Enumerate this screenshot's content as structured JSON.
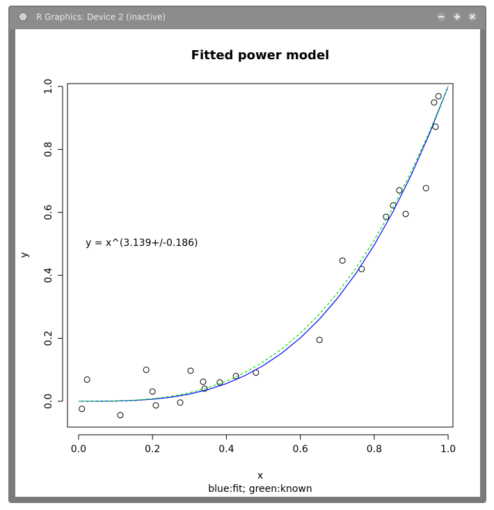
{
  "window_title": "R Graphics: Device 2 (inactive)",
  "chart_data": {
    "type": "scatter",
    "title": "Fitted power model",
    "x_label": "x",
    "y_label": "y",
    "subtitle": "blue:fit; green:known",
    "annotation": "y = x^(3.139+/-0.186)",
    "xlim": [
      -0.03,
      1.013
    ],
    "ylim": [
      -0.082,
      1.009
    ],
    "xticks": [
      {
        "value": 0,
        "label": "0.0"
      },
      0.2,
      0.4,
      0.6,
      0.8,
      {
        "value": 1,
        "label": "1.0"
      }
    ],
    "yticks": [
      {
        "value": 0,
        "label": "0.0"
      },
      0.2,
      0.4,
      0.6,
      0.8,
      {
        "value": 1,
        "label": "1.0"
      }
    ],
    "series": [
      {
        "type": "scatter",
        "color": "#000000",
        "x": [
          0.009,
          0.023,
          0.113,
          0.183,
          0.2,
          0.209,
          0.275,
          0.303,
          0.337,
          0.341,
          0.382,
          0.426,
          0.48,
          0.652,
          0.714,
          0.766,
          0.832,
          0.851,
          0.868,
          0.885,
          0.94,
          0.962,
          0.966,
          0.974
        ],
        "values": [
          -0.024,
          0.069,
          -0.044,
          0.1,
          0.031,
          -0.013,
          -0.004,
          0.097,
          0.062,
          0.04,
          0.06,
          0.08,
          0.091,
          0.195,
          0.447,
          0.42,
          0.586,
          0.622,
          0.67,
          0.595,
          0.677,
          0.949,
          0.872,
          0.969
        ]
      },
      {
        "type": "line",
        "color": "#0000ff",
        "x": [
          0,
          0.05,
          0.1,
          0.15,
          0.2,
          0.25,
          0.3,
          0.35,
          0.4,
          0.45,
          0.5,
          0.55,
          0.6,
          0.65,
          0.7,
          0.75,
          0.8,
          0.85,
          0.9,
          0.95,
          1
        ],
        "values": [
          0,
          0.0001,
          0.0007,
          0.0026,
          0.0064,
          0.0129,
          0.0228,
          0.0371,
          0.0563,
          0.0815,
          0.1135,
          0.1531,
          0.2012,
          0.2587,
          0.3264,
          0.4053,
          0.4964,
          0.6004,
          0.7184,
          0.8513,
          1
        ]
      },
      {
        "type": "line",
        "color": "#00dd00",
        "dashed": true,
        "x": [
          0,
          0.05,
          0.1,
          0.15,
          0.2,
          0.25,
          0.3,
          0.35,
          0.4,
          0.45,
          0.5,
          0.55,
          0.6,
          0.65,
          0.7,
          0.75,
          0.8,
          0.85,
          0.9,
          0.95,
          1
        ],
        "values": [
          0,
          0.0001,
          0.001,
          0.0034,
          0.008,
          0.0156,
          0.027,
          0.0429,
          0.064,
          0.0911,
          0.125,
          0.1664,
          0.216,
          0.2746,
          0.343,
          0.4219,
          0.512,
          0.6141,
          0.729,
          0.8574,
          1
        ]
      }
    ]
  }
}
